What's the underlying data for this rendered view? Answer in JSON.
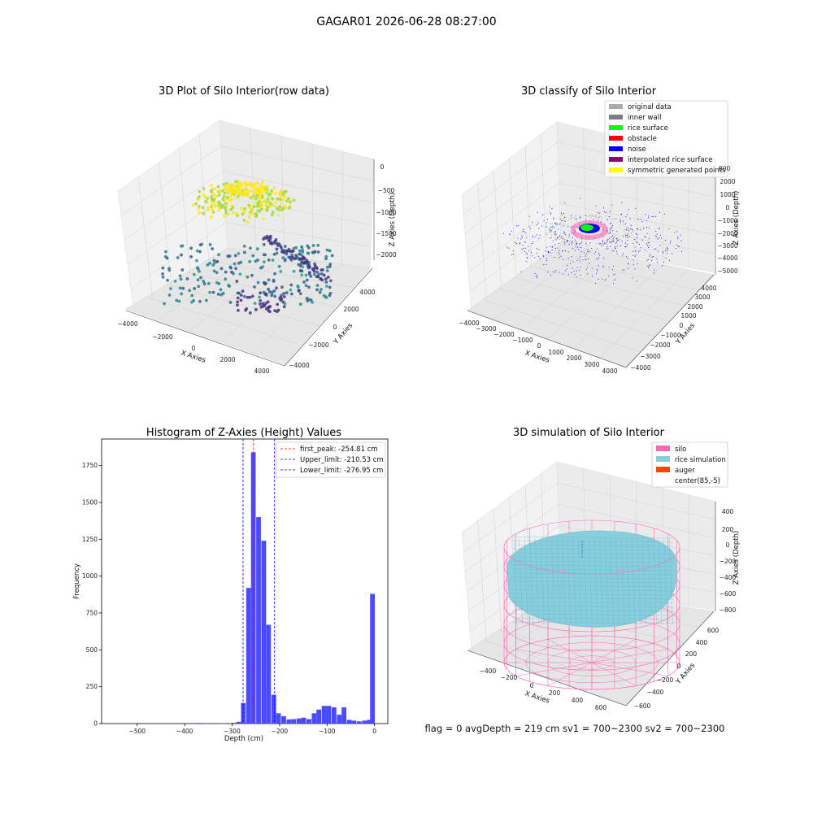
{
  "suptitle": "GAGAR01 2026-06-28 08:27:00",
  "footer_text": "flag = 0     avgDepth = 219 cm  sv1 = 700~2300  sv2 = 700~2300",
  "colors": {
    "noise": "#0000ff",
    "hist": "#4a4aff",
    "peak_line": "#ff0000",
    "limit_line": "#0000ff",
    "silo": "#ff69b4",
    "rice": "#87cedf",
    "auger": "#ff4500",
    "original": "#aaaaaa",
    "inner_wall": "#7f7f7f",
    "rice_surface": "#00ff00",
    "obstacle": "#ff0000",
    "interpolated": "#800080",
    "symmetric": "#ffff00"
  },
  "chart_data": [
    {
      "type": "scatter",
      "title": "3D Plot of Silo Interior(row data)",
      "xlabel": "X Axies",
      "ylabel": "Y Axies",
      "zlabel": "Z Axies (Depth)",
      "xticks": [
        "−4000",
        "−2000",
        "0",
        "2000",
        "4000"
      ],
      "yticks": [
        "−4000",
        "−2000",
        "0",
        "2000",
        "4000"
      ],
      "zticks": [
        "0",
        "−500",
        "−1000",
        "−1500",
        "−2000"
      ],
      "colormap": "viridis"
    },
    {
      "type": "scatter",
      "title": "3D classify of Silo Interior",
      "xlabel": "X Axies",
      "ylabel": "Y Axies",
      "zlabel": "Z Axies (Depth)",
      "xticks": [
        "−4000",
        "−3000",
        "−2000",
        "−1000",
        "0",
        "1000",
        "2000",
        "3000",
        "4000"
      ],
      "yticks": [
        "−4000",
        "−3000",
        "−2000",
        "−1000",
        "0",
        "1000",
        "2000",
        "3000",
        "4000"
      ],
      "zticks": [
        "2000",
        "1000",
        "0",
        "−1000",
        "−2000",
        "−3000",
        "−4000",
        "−5000"
      ],
      "legend": [
        {
          "label": "original data",
          "color": "#aaaaaa"
        },
        {
          "label": "inner wall",
          "color": "#7f7f7f"
        },
        {
          "label": "rice surface",
          "color": "#00ff00"
        },
        {
          "label": "obstacle",
          "color": "#ff0000"
        },
        {
          "label": "noise",
          "color": "#0000ff"
        },
        {
          "label": "interpolated rice surface",
          "color": "#800080"
        },
        {
          "label": "symmetric generated points",
          "color": "#ffff00"
        }
      ],
      "z_tick_partial": "000"
    },
    {
      "type": "bar",
      "title": "Histogram of Z-Axies (Height) Values",
      "xlabel": "Depth (cm)",
      "ylabel": "Frequency",
      "xticks": [
        -500,
        -400,
        -300,
        -200,
        -100,
        0
      ],
      "yticks": [
        0,
        250,
        500,
        750,
        1000,
        1250,
        1500,
        1750
      ],
      "xlim": [
        -575,
        28
      ],
      "ylim": [
        0,
        1930
      ],
      "bin_width": 10.6,
      "bins": [
        {
          "x": -370,
          "v": 4
        },
        {
          "x": -355,
          "v": 3
        },
        {
          "x": -320,
          "v": 2
        },
        {
          "x": -296,
          "v": 5
        },
        {
          "x": -286,
          "v": 12
        },
        {
          "x": -276,
          "v": 140
        },
        {
          "x": -265,
          "v": 920
        },
        {
          "x": -255,
          "v": 1840
        },
        {
          "x": -244,
          "v": 1400
        },
        {
          "x": -233,
          "v": 1240
        },
        {
          "x": -223,
          "v": 670
        },
        {
          "x": -212,
          "v": 195
        },
        {
          "x": -202,
          "v": 70
        },
        {
          "x": -191,
          "v": 50
        },
        {
          "x": -180,
          "v": 28
        },
        {
          "x": -170,
          "v": 30
        },
        {
          "x": -159,
          "v": 35
        },
        {
          "x": -149,
          "v": 40
        },
        {
          "x": -138,
          "v": 30
        },
        {
          "x": -127,
          "v": 70
        },
        {
          "x": -117,
          "v": 95
        },
        {
          "x": -106,
          "v": 120
        },
        {
          "x": -96,
          "v": 120
        },
        {
          "x": -85,
          "v": 110
        },
        {
          "x": -74,
          "v": 60
        },
        {
          "x": -64,
          "v": 110
        },
        {
          "x": -53,
          "v": 25
        },
        {
          "x": -43,
          "v": 20
        },
        {
          "x": -32,
          "v": 15
        },
        {
          "x": -21,
          "v": 20
        },
        {
          "x": -11,
          "v": 25
        },
        {
          "x": -4,
          "v": 880
        }
      ],
      "lines": [
        {
          "label": "first_peak: -254.81 cm",
          "x": -254.81,
          "color": "#ff0000"
        },
        {
          "label": "Upper_limit: -210.53 cm",
          "x": -210.53,
          "color": "#0000ff"
        },
        {
          "label": "Lower_limit: -276.95 cm",
          "x": -276.95,
          "color": "#0000ff"
        }
      ]
    },
    {
      "type": "area",
      "title": "3D simulation of Silo Interior",
      "xlabel": "X Axies",
      "ylabel": "Y Axies",
      "zlabel": "Z Axies (Depth)",
      "xticks": [
        "−400",
        "−200",
        "0",
        "200",
        "400",
        "600"
      ],
      "yticks": [
        "−600",
        "−400",
        "−200",
        "0",
        "200",
        "400",
        "600"
      ],
      "zticks": [
        "400",
        "200",
        "0",
        "−200",
        "−400",
        "−600",
        "−800"
      ],
      "legend": [
        {
          "label": "silo",
          "color": "#ff69b4"
        },
        {
          "label": "rice simulation",
          "color": "#87cedf"
        },
        {
          "label": "auger",
          "color": "#ff4500"
        },
        {
          "label": "center(85,-5)",
          "color": "none"
        }
      ]
    }
  ]
}
